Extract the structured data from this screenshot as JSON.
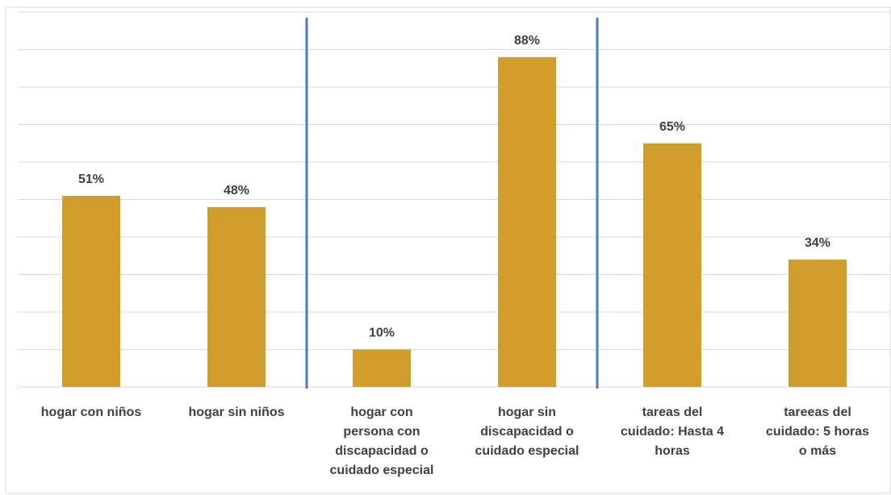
{
  "chart_data": {
    "type": "bar",
    "categories": [
      "hogar con niños",
      "hogar sin niños",
      "hogar con persona con discapacidad o cuidado especial",
      "hogar sin discapacidad o cuidado especial",
      "tareas del cuidado: Hasta 4 horas",
      "tareeas del cuidado: 5 horas o más"
    ],
    "category_lines": [
      [
        "hogar con niños"
      ],
      [
        "hogar sin niños"
      ],
      [
        "hogar con",
        "persona con",
        "discapacidad o",
        "cuidado especial"
      ],
      [
        "hogar sin",
        "discapacidad o",
        "cuidado especial"
      ],
      [
        "tareas del",
        "cuidado: Hasta 4",
        "horas"
      ],
      [
        "tareeas del",
        "cuidado: 5 horas",
        "o más"
      ]
    ],
    "values": [
      51,
      48,
      10,
      88,
      65,
      34
    ],
    "data_labels": [
      "51%",
      "48%",
      "10%",
      "88%",
      "65%",
      "34%"
    ],
    "ylim": [
      0,
      100
    ],
    "grid": true,
    "group_separators_after": [
      2,
      4
    ],
    "colors": {
      "bar": "#D09D2C",
      "grid": "#D9D9D9",
      "separator": "#4A7EBB",
      "text": "#404040"
    }
  }
}
